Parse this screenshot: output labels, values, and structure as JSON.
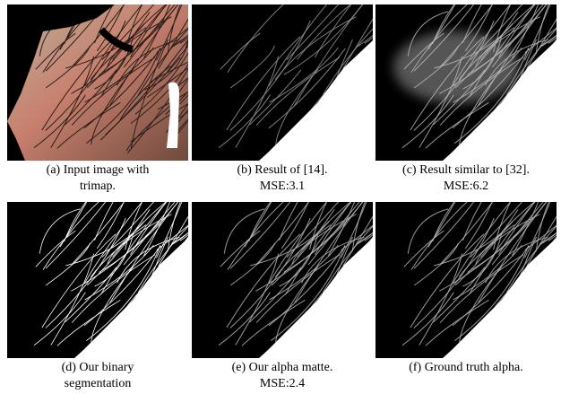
{
  "figure": {
    "panels": [
      {
        "caption": [
          "(a) Input image with",
          "trimap."
        ]
      },
      {
        "caption": [
          "(b) Result of [14].",
          "MSE:3.1"
        ]
      },
      {
        "caption": [
          "(c) Result similar to [32].",
          "MSE:6.2"
        ]
      },
      {
        "caption": [
          "(d) Our binary",
          "segmentation"
        ]
      },
      {
        "caption": [
          "(e) Our alpha matte.",
          "MSE:2.4"
        ]
      },
      {
        "caption": [
          "(f) Ground truth alpha."
        ]
      }
    ]
  }
}
